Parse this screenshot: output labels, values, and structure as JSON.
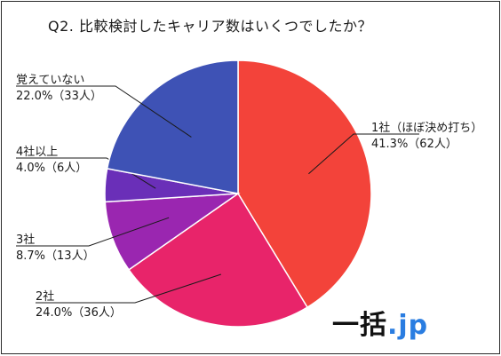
{
  "chart_data": {
    "type": "pie",
    "title": "Q2. 比較検討したキャリア数はいくつでしたか？",
    "categories": [
      "1社（ほぼ決め打ち）",
      "2社",
      "3社",
      "4社以上",
      "覚えていない"
    ],
    "values": [
      41.3,
      24.0,
      8.7,
      4.0,
      22.0
    ],
    "counts": [
      62,
      36,
      13,
      6,
      33
    ],
    "value_labels": [
      "41.3%（62人）",
      "24.0%（36人）",
      "8.7%（13人）",
      "4.0%（6人）",
      "22.0%（33人）"
    ],
    "colors": [
      "#f3433a",
      "#e8246a",
      "#9a26b0",
      "#6a2fb8",
      "#3e52b5"
    ],
    "start_angle_deg": 0,
    "direction": "clockwise"
  },
  "brand": {
    "text": "一括",
    "dot_text": ".jp"
  }
}
